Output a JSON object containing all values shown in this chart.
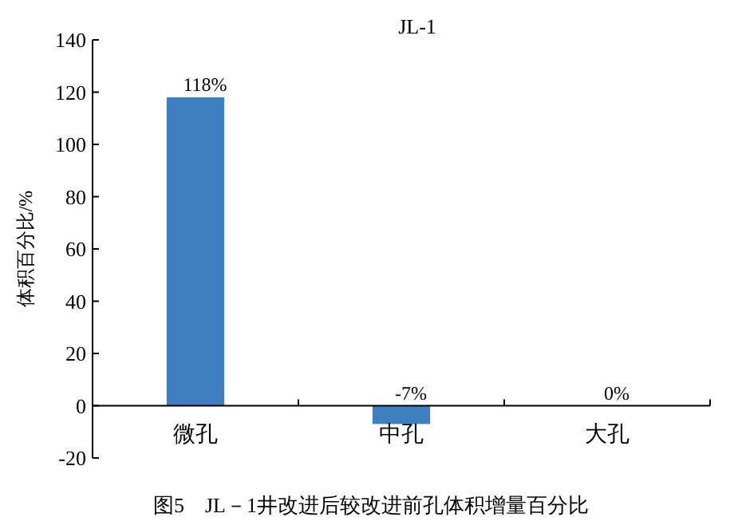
{
  "chart_data": {
    "type": "bar",
    "title": "JL-1",
    "ylabel": "体积百分比/%",
    "categories": [
      "微孔",
      "中孔",
      "大孔"
    ],
    "values": [
      118,
      -7,
      0
    ],
    "color": "#3f7fbf",
    "value_labels": [
      "118%",
      "-7%",
      "0%"
    ],
    "ylim": [
      -20,
      140
    ],
    "yticks": [
      -20,
      0,
      20,
      40,
      60,
      80,
      100,
      120,
      140
    ],
    "grid": false,
    "annotations": [
      "图5　JL－1井改进后较改进前孔体积增量百分比"
    ]
  }
}
